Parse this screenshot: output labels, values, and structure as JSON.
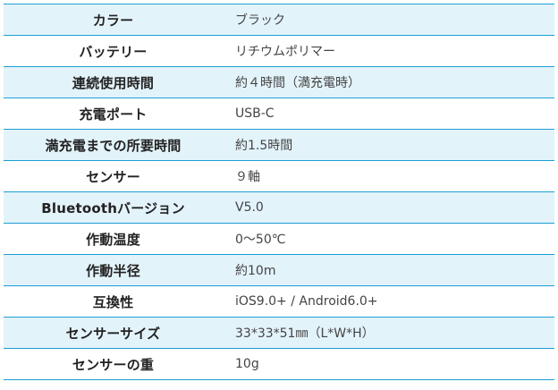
{
  "spec_table": {
    "rows": [
      {
        "label": "カラー",
        "value": "ブラック"
      },
      {
        "label": "バッテリー",
        "value": "リチウムポリマー"
      },
      {
        "label": "連続使用時間",
        "value": "約４時間（満充電時）"
      },
      {
        "label": "充電ポート",
        "value": "USB-C"
      },
      {
        "label": "満充電までの所要時間",
        "value": "約1.5時間"
      },
      {
        "label": "センサー",
        "value": "９軸"
      },
      {
        "label": "Bluetoothバージョン",
        "value": "V5.0"
      },
      {
        "label": "作動温度",
        "value": "0～50℃"
      },
      {
        "label": "作動半径",
        "value": "約10m"
      },
      {
        "label": "互換性",
        "value": "iOS9.0+ / Android6.0+"
      },
      {
        "label": "センサーサイズ",
        "value": "33*33*51㎜（L*W*H）"
      },
      {
        "label": "センサーの重",
        "value": "10g"
      }
    ]
  },
  "colors": {
    "row_shade": "#e3f3fa",
    "border": "#1a9fd3",
    "label_text": "#222222",
    "value_text": "#444444"
  }
}
